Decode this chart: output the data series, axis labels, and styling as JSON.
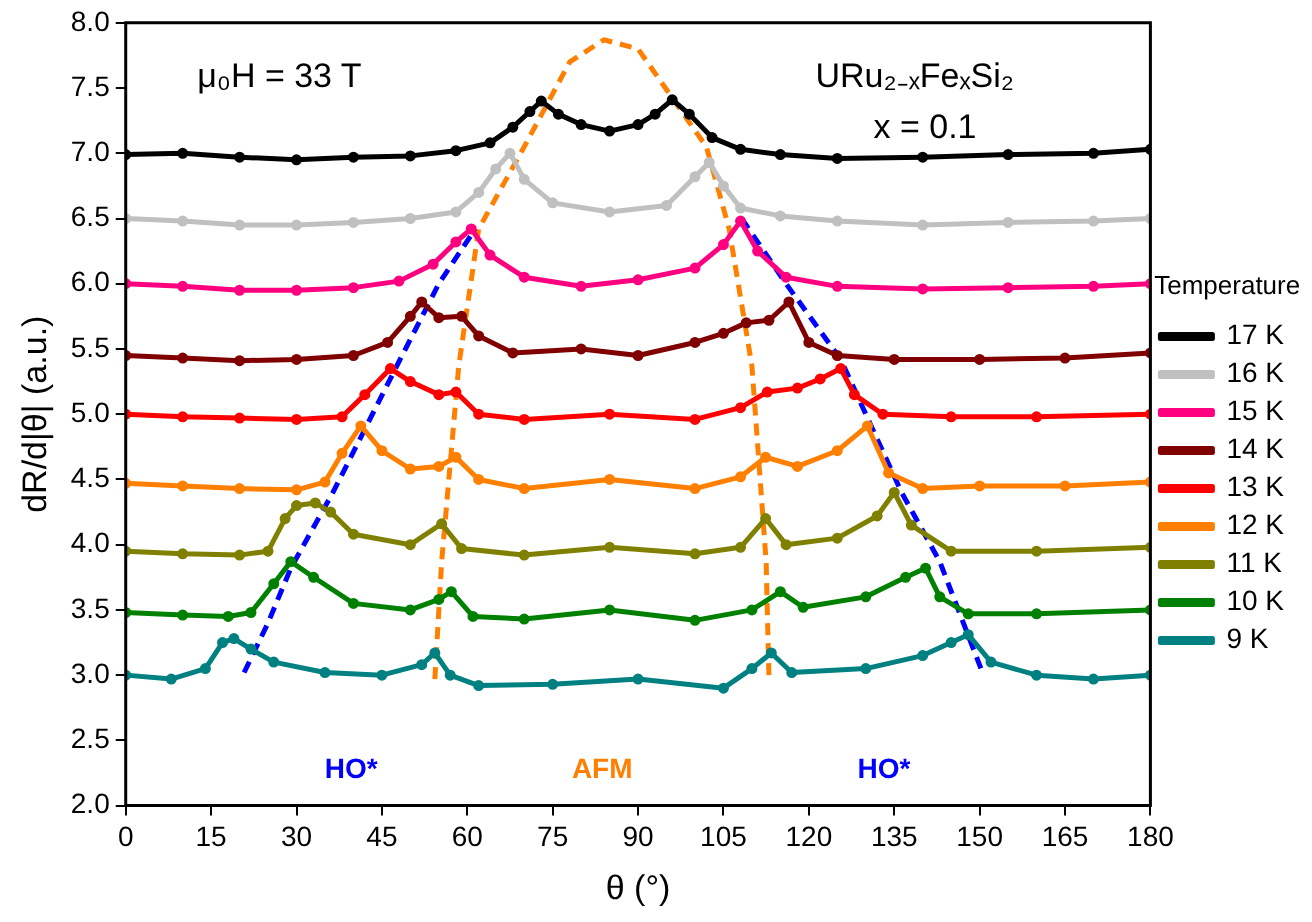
{
  "chart_data": {
    "type": "line",
    "xlabel": "θ (°)",
    "ylabel": "dR/d|θ| (a.u.)",
    "legend_title": "Temperature",
    "legend": "right",
    "grid": false,
    "marker": "circle",
    "line_style": "solid",
    "xlim": [
      0,
      180
    ],
    "xticks": [
      0,
      15,
      30,
      45,
      60,
      75,
      90,
      105,
      120,
      135,
      150,
      165,
      180
    ],
    "ylim": [
      2,
      8
    ],
    "yticks": [
      {
        "value": 2,
        "label": "2.0"
      },
      {
        "value": 2.5,
        "label": "2.5"
      },
      {
        "value": 3,
        "label": "3.0"
      },
      {
        "value": 3.5,
        "label": "3.5"
      },
      {
        "value": 4,
        "label": "4.0"
      },
      {
        "value": 4.5,
        "label": "4.5"
      },
      {
        "value": 5,
        "label": "5.0"
      },
      {
        "value": 5.5,
        "label": "5.5"
      },
      {
        "value": 6,
        "label": "6.0"
      },
      {
        "value": 6.5,
        "label": "6.5"
      },
      {
        "value": 7,
        "label": "7.0"
      },
      {
        "value": 7.5,
        "label": "7.5"
      },
      {
        "value": 8,
        "label": "8.0"
      }
    ],
    "annotations": [
      "μ₀H = 33 T",
      "URu₂₋ₓFeₓSi₂",
      "x = 0.1",
      "HO*",
      "AFM",
      "HO*"
    ],
    "series": [
      {
        "name": "17 K",
        "color": "#000000",
        "x": [
          0,
          10,
          20,
          30,
          40,
          50,
          58,
          64,
          68,
          71,
          73,
          76,
          80,
          85,
          90,
          93,
          96,
          99,
          103,
          108,
          115,
          125,
          140,
          155,
          170,
          180
        ],
        "values": [
          6.99,
          7.0,
          6.97,
          6.95,
          6.97,
          6.98,
          7.02,
          7.08,
          7.2,
          7.32,
          7.4,
          7.3,
          7.22,
          7.17,
          7.22,
          7.3,
          7.41,
          7.3,
          7.12,
          7.03,
          6.99,
          6.96,
          6.97,
          6.99,
          7.0,
          7.03
        ]
      },
      {
        "name": "16 K",
        "color": "#c0c0c0",
        "x": [
          0,
          10,
          20,
          30,
          40,
          50,
          58,
          62,
          65,
          67.5,
          70,
          75,
          85,
          95,
          100,
          102.5,
          105,
          108,
          115,
          125,
          140,
          155,
          170,
          180
        ],
        "values": [
          6.5,
          6.48,
          6.45,
          6.45,
          6.47,
          6.5,
          6.55,
          6.7,
          6.88,
          7.0,
          6.8,
          6.62,
          6.55,
          6.6,
          6.82,
          6.93,
          6.75,
          6.58,
          6.52,
          6.48,
          6.45,
          6.47,
          6.48,
          6.5
        ]
      },
      {
        "name": "15 K",
        "color": "#ff0080",
        "x": [
          0,
          10,
          20,
          30,
          40,
          48,
          54,
          58,
          60.7,
          64,
          70,
          80,
          90,
          100,
          105,
          108,
          111,
          116,
          125,
          140,
          155,
          170,
          180
        ],
        "values": [
          6.0,
          5.98,
          5.95,
          5.95,
          5.97,
          6.02,
          6.15,
          6.32,
          6.42,
          6.22,
          6.05,
          5.98,
          6.03,
          6.12,
          6.3,
          6.48,
          6.25,
          6.05,
          5.98,
          5.96,
          5.97,
          5.98,
          6.0
        ]
      },
      {
        "name": "14 K",
        "color": "#800000",
        "x": [
          0,
          10,
          20,
          30,
          40,
          46,
          50,
          52,
          55,
          59,
          62,
          68,
          80,
          90,
          100,
          105,
          109,
          113,
          116.5,
          120,
          125,
          135,
          150,
          165,
          180
        ],
        "values": [
          5.45,
          5.43,
          5.41,
          5.42,
          5.45,
          5.55,
          5.75,
          5.86,
          5.74,
          5.75,
          5.6,
          5.47,
          5.5,
          5.45,
          5.55,
          5.62,
          5.7,
          5.72,
          5.86,
          5.55,
          5.45,
          5.42,
          5.42,
          5.43,
          5.47
        ]
      },
      {
        "name": "13 K",
        "color": "#ff0000",
        "x": [
          0,
          10,
          20,
          30,
          38,
          42,
          46.5,
          50,
          55,
          58,
          62,
          70,
          85,
          100,
          108,
          112.7,
          118,
          122,
          125.6,
          128,
          133,
          145,
          160,
          180
        ],
        "values": [
          5.0,
          4.98,
          4.97,
          4.96,
          4.98,
          5.15,
          5.35,
          5.25,
          5.15,
          5.17,
          5.0,
          4.96,
          5.0,
          4.96,
          5.05,
          5.17,
          5.2,
          5.27,
          5.35,
          5.15,
          5.0,
          4.98,
          4.98,
          5.0
        ]
      },
      {
        "name": "12 K",
        "color": "#ff8000",
        "x": [
          0,
          10,
          20,
          30,
          35,
          38,
          41.3,
          45,
          50,
          55,
          58,
          62,
          70,
          85,
          100,
          108,
          112.4,
          118,
          125,
          130.3,
          134,
          140,
          150,
          165,
          180
        ],
        "values": [
          4.47,
          4.45,
          4.43,
          4.42,
          4.48,
          4.7,
          4.91,
          4.72,
          4.58,
          4.6,
          4.67,
          4.5,
          4.43,
          4.5,
          4.43,
          4.52,
          4.67,
          4.6,
          4.72,
          4.91,
          4.55,
          4.43,
          4.45,
          4.45,
          4.48
        ]
      },
      {
        "name": "11 K",
        "color": "#808000",
        "x": [
          0,
          10,
          20,
          25,
          28,
          30,
          33.3,
          36,
          40,
          50,
          55.5,
          59,
          70,
          85,
          100,
          108,
          112.4,
          116,
          125,
          132,
          135,
          138,
          145,
          160,
          180
        ],
        "values": [
          3.95,
          3.93,
          3.92,
          3.95,
          4.2,
          4.3,
          4.32,
          4.25,
          4.08,
          4.0,
          4.16,
          3.97,
          3.92,
          3.98,
          3.93,
          3.98,
          4.2,
          4.0,
          4.05,
          4.22,
          4.4,
          4.15,
          3.95,
          3.95,
          3.98
        ]
      },
      {
        "name": "10 K",
        "color": "#008000",
        "x": [
          0,
          10,
          18,
          22,
          26,
          29,
          33,
          40,
          50,
          55,
          57.2,
          61,
          70,
          85,
          100,
          110,
          115,
          119,
          130,
          137,
          140.5,
          143,
          148,
          160,
          180
        ],
        "values": [
          3.48,
          3.46,
          3.45,
          3.48,
          3.7,
          3.87,
          3.75,
          3.55,
          3.5,
          3.58,
          3.64,
          3.45,
          3.43,
          3.5,
          3.42,
          3.5,
          3.64,
          3.52,
          3.6,
          3.75,
          3.82,
          3.6,
          3.47,
          3.47,
          3.5
        ]
      },
      {
        "name": "9 K",
        "color": "#008080",
        "x": [
          0,
          8,
          14,
          17,
          19,
          22,
          26,
          35,
          45,
          52,
          54.3,
          57,
          62,
          75,
          90,
          105,
          110,
          113.4,
          117,
          130,
          140,
          145,
          148,
          152,
          160,
          170,
          180
        ],
        "values": [
          3.0,
          2.97,
          3.05,
          3.25,
          3.28,
          3.2,
          3.1,
          3.02,
          3.0,
          3.08,
          3.17,
          3.0,
          2.92,
          2.93,
          2.97,
          2.9,
          3.05,
          3.17,
          3.02,
          3.05,
          3.15,
          3.25,
          3.31,
          3.1,
          3.0,
          2.97,
          3.0
        ]
      },
      {
        "color": "#0000ff",
        "marker": "none",
        "line_style": "dashed",
        "x": [
          20.8,
          25,
          29,
          36.4,
          48.2,
          55,
          61.4
        ],
        "values": [
          3.02,
          3.4,
          3.82,
          4.4,
          5.42,
          6.0,
          6.42
        ]
      },
      {
        "color": "#0000ff",
        "marker": "none",
        "line_style": "dashed",
        "x": [
          108.2,
          116,
          125.6,
          136.3,
          143,
          150.5
        ],
        "values": [
          6.5,
          6.0,
          5.42,
          4.4,
          3.87,
          3.02
        ]
      },
      {
        "color": "#ff8000",
        "marker": "none",
        "line_style": "dashed",
        "x": [
          54.3,
          55.5,
          58.5,
          62,
          70,
          78,
          84,
          90,
          102,
          106,
          110,
          112.5,
          113
        ],
        "values": [
          2.97,
          3.87,
          5.37,
          6.42,
          7.05,
          7.7,
          7.87,
          7.8,
          7.05,
          6.42,
          5.37,
          3.87,
          2.97
        ]
      }
    ]
  }
}
